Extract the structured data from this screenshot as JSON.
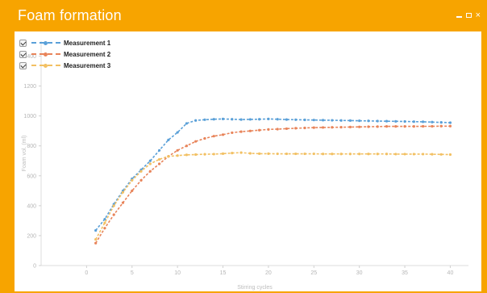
{
  "window": {
    "title": "Foam formation",
    "controls": {
      "minimize": "–",
      "maximize": "",
      "close": "×"
    }
  },
  "legend": [
    {
      "label": "Measurement 1",
      "color": "#5aa0d8",
      "checked": true
    },
    {
      "label": "Measurement 2",
      "color": "#e8845a",
      "checked": true
    },
    {
      "label": "Measurement 3",
      "color": "#f2c063",
      "checked": true
    }
  ],
  "chart_data": {
    "type": "line",
    "title": "Foam formation",
    "xlabel": "Stirring cycles",
    "ylabel": "Foam vol. (ml)",
    "xlim": [
      -5,
      42
    ],
    "ylim": [
      0,
      1500
    ],
    "xticks": [
      0,
      5,
      10,
      15,
      20,
      25,
      30,
      35,
      40
    ],
    "yticks": [
      0,
      200,
      400,
      600,
      800,
      1000,
      1200,
      1400
    ],
    "grid": false,
    "legend_position": "top-left",
    "series": [
      {
        "name": "Measurement 1",
        "color": "#5aa0d8",
        "x": [
          1,
          2,
          3,
          4,
          5,
          6,
          7,
          8,
          9,
          10,
          11,
          12,
          13,
          14,
          15,
          16,
          17,
          18,
          19,
          20,
          21,
          22,
          23,
          24,
          25,
          26,
          27,
          28,
          29,
          30,
          31,
          32,
          33,
          34,
          35,
          36,
          37,
          38,
          39,
          40
        ],
        "y": [
          235,
          310,
          410,
          500,
          580,
          640,
          700,
          770,
          840,
          890,
          950,
          970,
          975,
          978,
          980,
          978,
          976,
          977,
          978,
          980,
          978,
          976,
          975,
          974,
          973,
          972,
          971,
          970,
          969,
          968,
          967,
          966,
          965,
          964,
          963,
          962,
          961,
          959,
          957,
          955
        ]
      },
      {
        "name": "Measurement 2",
        "color": "#e8845a",
        "x": [
          1,
          2,
          3,
          4,
          5,
          6,
          7,
          8,
          9,
          10,
          11,
          12,
          13,
          14,
          15,
          16,
          17,
          18,
          19,
          20,
          21,
          22,
          23,
          24,
          25,
          26,
          27,
          28,
          29,
          30,
          31,
          32,
          33,
          34,
          35,
          36,
          37,
          38,
          39,
          40
        ],
        "y": [
          150,
          250,
          340,
          420,
          500,
          570,
          630,
          680,
          730,
          770,
          800,
          830,
          850,
          865,
          875,
          888,
          895,
          900,
          905,
          910,
          912,
          915,
          918,
          920,
          922,
          923,
          924,
          925,
          926,
          927,
          928,
          929,
          930,
          930,
          930,
          930,
          931,
          931,
          932,
          932
        ]
      },
      {
        "name": "Measurement 3",
        "color": "#f2c063",
        "x": [
          1,
          2,
          3,
          4,
          5,
          6,
          7,
          8,
          9,
          10,
          11,
          12,
          13,
          14,
          15,
          16,
          17,
          18,
          19,
          20,
          21,
          22,
          23,
          24,
          25,
          26,
          27,
          28,
          29,
          30,
          31,
          32,
          33,
          34,
          35,
          36,
          37,
          38,
          39,
          40
        ],
        "y": [
          175,
          285,
          400,
          490,
          570,
          630,
          680,
          710,
          730,
          735,
          740,
          742,
          744,
          745,
          748,
          752,
          755,
          750,
          748,
          748,
          747,
          747,
          747,
          747,
          747,
          746,
          746,
          746,
          746,
          746,
          746,
          746,
          746,
          745,
          745,
          745,
          745,
          744,
          743,
          742
        ]
      }
    ]
  }
}
